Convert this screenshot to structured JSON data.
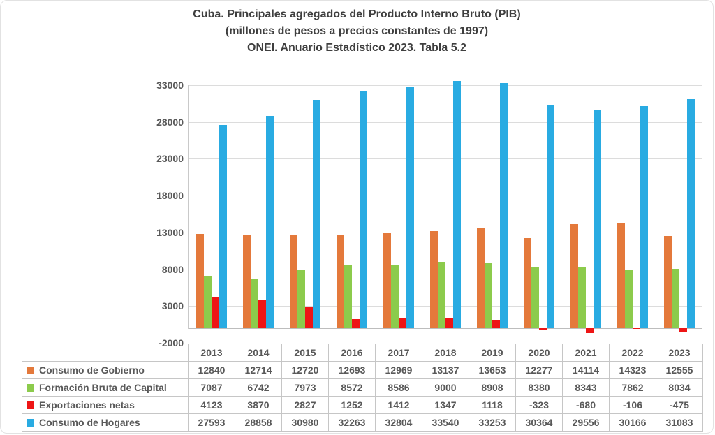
{
  "chart_data": {
    "type": "bar",
    "title_lines": [
      "Cuba. Principales agregados del Producto Interno Bruto (PIB)",
      "(millones de pesos a precios constantes de 1997)",
      "ONEI. Anuario Estadístico 2023. Tabla 5.2"
    ],
    "categories": [
      "2013",
      "2014",
      "2015",
      "2016",
      "2017",
      "2018",
      "2019",
      "2020",
      "2021",
      "2022",
      "2023"
    ],
    "series": [
      {
        "name": "Consumo de Gobierno",
        "color": "#e4793b",
        "values": [
          12840,
          12714,
          12720,
          12693,
          12969,
          13137,
          13653,
          12277,
          14114,
          14323,
          12555
        ]
      },
      {
        "name": "Formación Bruta de Capital",
        "color": "#8ccb4c",
        "values": [
          7087,
          6742,
          7973,
          8572,
          8586,
          9000,
          8908,
          8380,
          8343,
          7862,
          8034
        ]
      },
      {
        "name": "Exportaciones netas",
        "color": "#ee1515",
        "values": [
          4123,
          3870,
          2827,
          1252,
          1412,
          1347,
          1118,
          -323,
          -680,
          -106,
          -475
        ]
      },
      {
        "name": "Consumo de Hogares",
        "color": "#29abe2",
        "values": [
          27593,
          28858,
          30980,
          32263,
          32804,
          33540,
          33253,
          30364,
          29556,
          30166,
          31083
        ]
      }
    ],
    "y_axis": {
      "min": -2000,
      "max": 33000,
      "tick_step": 5000,
      "ticks": [
        33000,
        28000,
        23000,
        18000,
        13000,
        8000,
        3000,
        -2000
      ]
    },
    "grid": "horizontal",
    "legend_position": "table-rows-left",
    "colors": {
      "grid_line": "#dcdcdc",
      "zero_axis_line": "#bdbdbd",
      "table_border": "#c6c6c6",
      "text": "#595959",
      "title_text": "#3f3f3f"
    }
  }
}
